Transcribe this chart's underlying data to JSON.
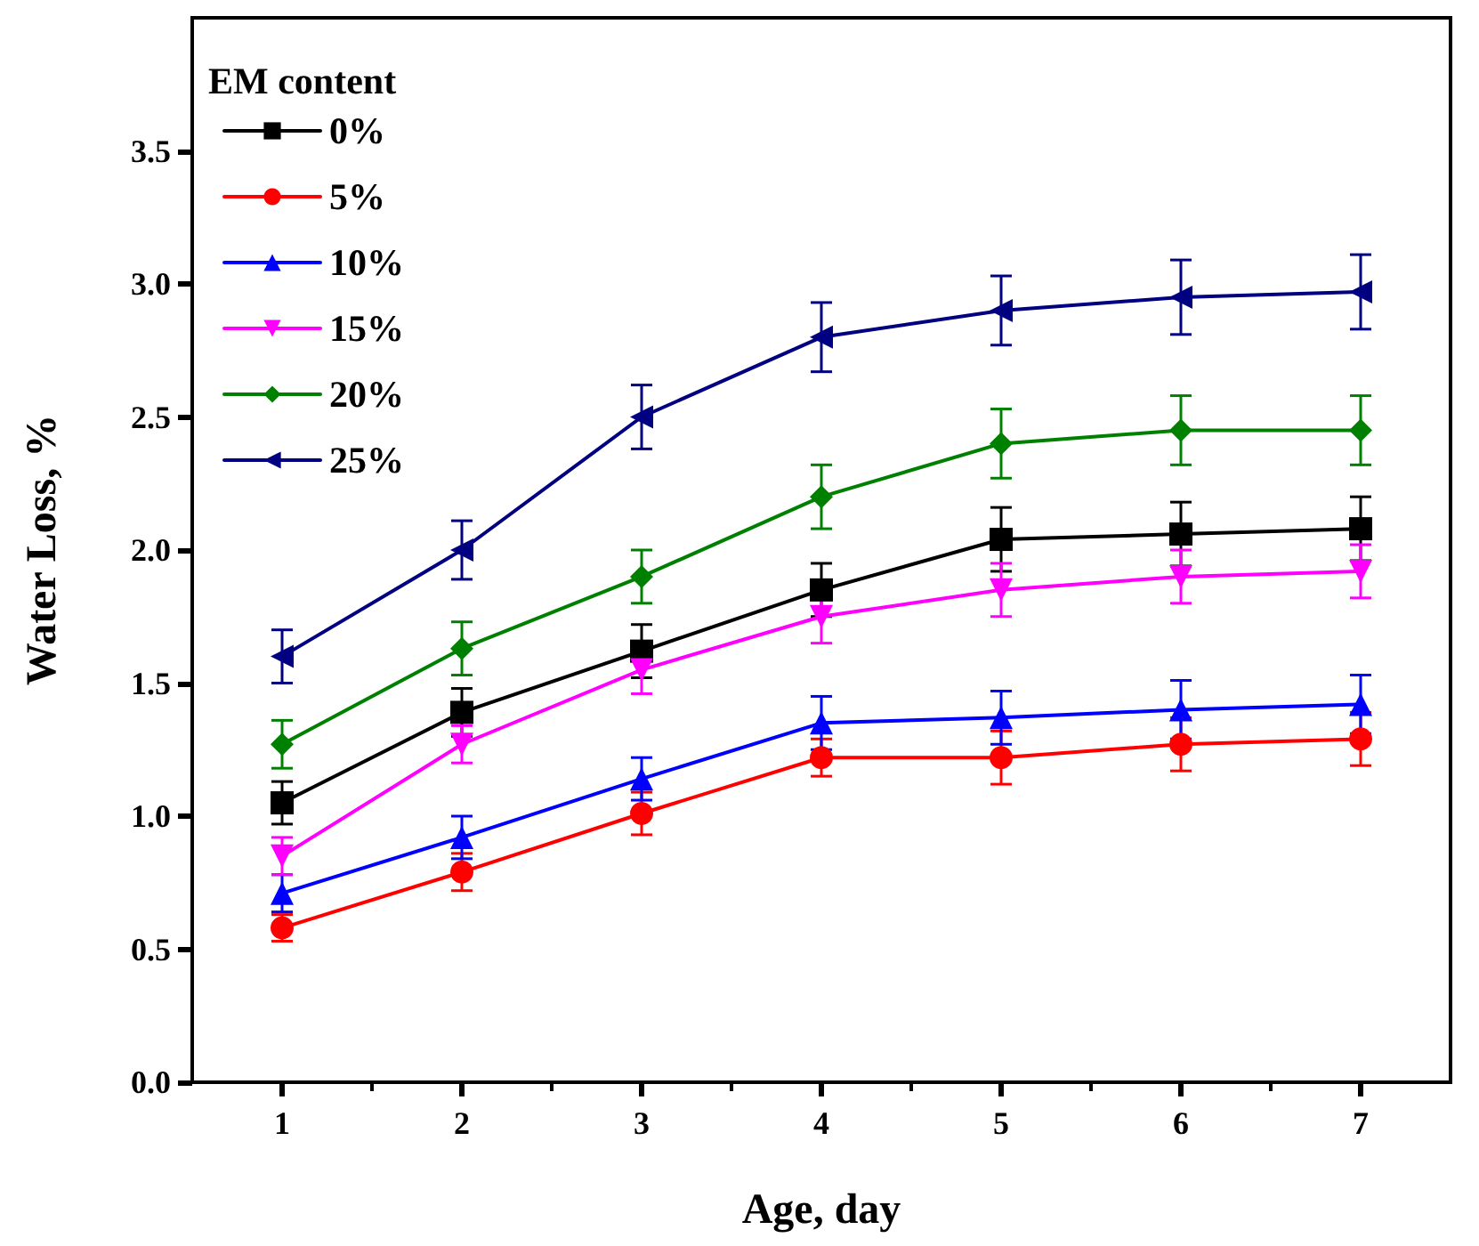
{
  "chart_data": {
    "type": "line",
    "xlabel": "Age, day",
    "ylabel": "Water Loss, %",
    "legend_title": "EM content",
    "x": [
      1,
      2,
      3,
      4,
      5,
      6,
      7
    ],
    "xlim": [
      0.5,
      7.5
    ],
    "xticks": [
      1,
      2,
      3,
      4,
      5,
      6,
      7
    ],
    "ylim": [
      0,
      4.0
    ],
    "yticks": [
      {
        "value": 0,
        "label": "0.0"
      },
      0.5,
      {
        "value": 1,
        "label": "1.0"
      },
      1.5,
      {
        "value": 2,
        "label": "2.0"
      },
      2.5,
      {
        "value": 3,
        "label": "3.0"
      },
      3.5
    ],
    "grid": false,
    "legend": "top left",
    "series": [
      {
        "name": "0%",
        "color": "#000000",
        "marker": "square",
        "values": [
          1.05,
          1.39,
          1.62,
          1.85,
          2.04,
          2.06,
          2.08
        ],
        "errors": [
          0.08,
          0.09,
          0.1,
          0.1,
          0.12,
          0.12,
          0.12
        ]
      },
      {
        "name": "5%",
        "color": "#ff0000",
        "marker": "circle",
        "values": [
          0.58,
          0.79,
          1.01,
          1.22,
          1.22,
          1.27,
          1.29
        ],
        "errors": [
          0.05,
          0.07,
          0.08,
          0.07,
          0.1,
          0.1,
          0.1
        ]
      },
      {
        "name": "10%",
        "color": "#0000ff",
        "marker": "triangle",
        "values": [
          0.71,
          0.92,
          1.14,
          1.35,
          1.37,
          1.4,
          1.42
        ],
        "errors": [
          0.07,
          0.08,
          0.08,
          0.1,
          0.1,
          0.11,
          0.11
        ]
      },
      {
        "name": "15%",
        "color": "#ff00ff",
        "marker": "triangle-down",
        "values": [
          0.85,
          1.27,
          1.55,
          1.75,
          1.85,
          1.9,
          1.92
        ],
        "errors": [
          0.07,
          0.07,
          0.09,
          0.1,
          0.1,
          0.1,
          0.1
        ]
      },
      {
        "name": "20%",
        "color": "#008000",
        "marker": "diamond",
        "values": [
          1.27,
          1.63,
          1.9,
          2.2,
          2.4,
          2.45,
          2.45
        ],
        "errors": [
          0.09,
          0.1,
          0.1,
          0.12,
          0.13,
          0.13,
          0.13
        ]
      },
      {
        "name": "25%",
        "color": "#000080",
        "marker": "triangle-left",
        "values": [
          1.6,
          2.0,
          2.5,
          2.8,
          2.9,
          2.95,
          2.97
        ],
        "errors": [
          0.1,
          0.11,
          0.12,
          0.13,
          0.13,
          0.14,
          0.14
        ]
      }
    ]
  }
}
